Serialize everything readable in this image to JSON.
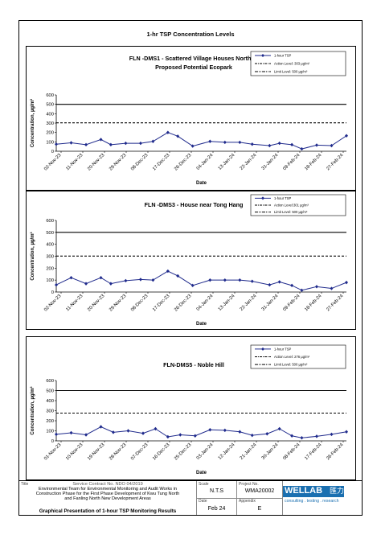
{
  "page": {
    "title": "1-hr TSP Concentration Levels"
  },
  "legend_labels": [
    "1-hour TSP",
    "Action Level: 303 µg/m³",
    "Limit Level: 500 µg/m³"
  ],
  "chart_data": [
    {
      "type": "line",
      "title": "FLN -DMS1 - Scattered Village Houses North of Proposed Potential Ecopark",
      "xlabel": "Date",
      "ylabel": "Concentration, µg/m³",
      "ylim": [
        0,
        600
      ],
      "yticks": [
        0,
        100,
        200,
        300,
        400,
        500,
        600
      ],
      "xticks": [
        "02-Nov-23",
        "11-Nov-23",
        "20-Nov-23",
        "29-Nov-23",
        "08-Dec-23",
        "17-Dec-23",
        "26-Dec-23",
        "04-Jan-24",
        "13-Jan-24",
        "22-Jan-24",
        "31-Jan-24",
        "09-Feb-24",
        "18-Feb-24",
        "27-Feb-24"
      ],
      "x_start": "2023-11-02",
      "x_end": "2024-02-27",
      "legend": [
        "1-hour TSP",
        "Action Level: 303 µg/m³",
        "Limit Level: 500 µg/m³"
      ],
      "action_level": 303,
      "limit_level": 500,
      "series": [
        {
          "name": "1-hour TSP",
          "x": [
            "2023-11-02",
            "2023-11-08",
            "2023-11-14",
            "2023-11-20",
            "2023-11-24",
            "2023-11-30",
            "2023-12-06",
            "2023-12-11",
            "2023-12-17",
            "2023-12-21",
            "2023-12-27",
            "2024-01-03",
            "2024-01-09",
            "2024-01-15",
            "2024-01-20",
            "2024-01-27",
            "2024-01-31",
            "2024-02-05",
            "2024-02-09",
            "2024-02-15",
            "2024-02-21",
            "2024-02-27"
          ],
          "values": [
            75,
            90,
            70,
            125,
            70,
            85,
            85,
            105,
            200,
            160,
            55,
            105,
            95,
            95,
            75,
            60,
            85,
            70,
            25,
            65,
            60,
            165
          ]
        }
      ]
    },
    {
      "type": "line",
      "title": "FLN -DMS3 - House near Tong Hang",
      "xlabel": "Date",
      "ylabel": "Concentration, µg/m³",
      "ylim": [
        0,
        600
      ],
      "yticks": [
        0,
        100,
        200,
        300,
        400,
        500,
        600
      ],
      "xticks": [
        "02-Nov-23",
        "11-Nov-23",
        "20-Nov-23",
        "29-Nov-23",
        "08-Dec-23",
        "17-Dec-23",
        "26-Dec-23",
        "04-Jan-24",
        "13-Jan-24",
        "22-Jan-24",
        "31-Jan-24",
        "09-Feb-24",
        "18-Feb-24",
        "27-Feb-24"
      ],
      "x_start": "2023-11-02",
      "x_end": "2024-02-27",
      "legend": [
        "1-hour TSP",
        "Action Level:301 µg/m³",
        "Limit Level: 500 µg/m³"
      ],
      "action_level": 301,
      "limit_level": 500,
      "series": [
        {
          "name": "1-hour TSP",
          "x": [
            "2023-11-02",
            "2023-11-08",
            "2023-11-14",
            "2023-11-20",
            "2023-11-24",
            "2023-11-30",
            "2023-12-06",
            "2023-12-11",
            "2023-12-17",
            "2023-12-21",
            "2023-12-27",
            "2024-01-03",
            "2024-01-09",
            "2024-01-15",
            "2024-01-20",
            "2024-01-27",
            "2024-01-31",
            "2024-02-05",
            "2024-02-09",
            "2024-02-15",
            "2024-02-21",
            "2024-02-27"
          ],
          "values": [
            60,
            120,
            70,
            120,
            70,
            95,
            105,
            100,
            175,
            135,
            55,
            100,
            100,
            100,
            90,
            60,
            85,
            55,
            15,
            45,
            30,
            80
          ]
        }
      ]
    },
    {
      "type": "line",
      "title": "FLN-DMS5 - Noble Hill",
      "xlabel": "Date",
      "ylabel": "Concentration, µg/m³",
      "ylim": [
        0,
        600
      ],
      "yticks": [
        0,
        100,
        200,
        300,
        400,
        500,
        600
      ],
      "xticks": [
        "01-Nov-23",
        "10-Nov-23",
        "19-Nov-23",
        "28-Nov-23",
        "07-Dec-23",
        "16-Dec-23",
        "25-Dec-23",
        "03-Jan-24",
        "12-Jan-24",
        "21-Jan-24",
        "30-Jan-24",
        "08-Feb-24",
        "17-Feb-24",
        "26-Feb-24"
      ],
      "x_start": "2023-11-01",
      "x_end": "2024-02-26",
      "legend": [
        "1-hour TSP",
        "Action Level: 276 µg/m³",
        "Limit Level: 500 µg/m³"
      ],
      "action_level": 276,
      "limit_level": 500,
      "series": [
        {
          "name": "1-hour TSP",
          "x": [
            "2023-11-01",
            "2023-11-07",
            "2023-11-13",
            "2023-11-19",
            "2023-11-24",
            "2023-11-30",
            "2023-12-06",
            "2023-12-11",
            "2023-12-16",
            "2023-12-21",
            "2023-12-27",
            "2024-01-02",
            "2024-01-08",
            "2024-01-14",
            "2024-01-19",
            "2024-01-25",
            "2024-01-30",
            "2024-02-04",
            "2024-02-08",
            "2024-02-14",
            "2024-02-20",
            "2024-02-26"
          ],
          "values": [
            65,
            80,
            60,
            140,
            85,
            100,
            75,
            120,
            40,
            60,
            50,
            110,
            105,
            90,
            55,
            70,
            120,
            50,
            30,
            45,
            65,
            90
          ]
        }
      ]
    }
  ],
  "title_block": {
    "title_label": "Title",
    "service_contract": "Service Contract No. NDO 04/2019",
    "description": [
      "Environmental Team for Environmental Monitoring and Audit Works in",
      "Construction Phase for the First Phase Development of Kwu Tung North",
      "and Fanling North New Development Areas"
    ],
    "graph_title": "Graphical Presentation of 1-hour TSP Monitoring Results",
    "scale_label": "Scale",
    "scale_value": "N.T.S",
    "date_label": "Date",
    "date_value": "Feb 24",
    "project_label": "Project No.",
    "project_value": "WMA20002",
    "appendix_label": "Appendix",
    "appendix_value": "E",
    "logo_text": "WELLAB",
    "logo_cn": "匯力",
    "tagline": "consulting . testing . research"
  },
  "colors": {
    "series": "#1f2a8c",
    "axis": "#000000",
    "logo": "#1a6fb0"
  }
}
